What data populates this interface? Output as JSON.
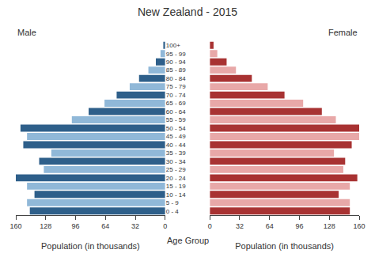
{
  "chart_data": {
    "type": "bar",
    "orientation": "horizontal",
    "title": "New Zealand - 2015",
    "categories": [
      "0 - 4",
      "5 - 9",
      "10 - 14",
      "15 - 19",
      "20 - 24",
      "25 - 29",
      "30 - 34",
      "35 - 39",
      "40 - 44",
      "45 - 49",
      "50 - 54",
      "55 - 59",
      "60 - 64",
      "65 - 69",
      "70 - 74",
      "75 - 79",
      "80 - 84",
      "85 - 89",
      "90 - 94",
      "95 - 99",
      "100+"
    ],
    "series": [
      {
        "name": "Male",
        "colors": [
          "#2e5f8a",
          "#90b8d8",
          "#2e5f8a",
          "#90b8d8",
          "#2e5f8a",
          "#90b8d8",
          "#2e5f8a",
          "#90b8d8",
          "#2e5f8a",
          "#90b8d8",
          "#2e5f8a",
          "#90b8d8",
          "#2e5f8a",
          "#90b8d8",
          "#2e5f8a",
          "#90b8d8",
          "#2e5f8a",
          "#90b8d8",
          "#2e5f8a",
          "#90b8d8",
          "#2e5f8a"
        ],
        "values": [
          145,
          148,
          140,
          148,
          160,
          130,
          135,
          122,
          152,
          148,
          155,
          100,
          82,
          65,
          52,
          38,
          28,
          18,
          10,
          5,
          2
        ]
      },
      {
        "name": "Female",
        "colors": [
          "#a83232",
          "#e8a8a8",
          "#a83232",
          "#e8a8a8",
          "#a83232",
          "#e8a8a8",
          "#a83232",
          "#e8a8a8",
          "#a83232",
          "#e8a8a8",
          "#a83232",
          "#e8a8a8",
          "#a83232",
          "#e8a8a8",
          "#a83232",
          "#e8a8a8",
          "#a83232",
          "#e8a8a8",
          "#a83232",
          "#e8a8a8",
          "#a83232"
        ],
        "values": [
          150,
          150,
          138,
          150,
          158,
          143,
          145,
          133,
          152,
          160,
          160,
          135,
          120,
          100,
          80,
          62,
          45,
          28,
          18,
          8,
          4
        ]
      }
    ],
    "xlabel": "Population (in thousands)",
    "ylabel": "Age Group",
    "xlim": [
      0,
      160
    ],
    "xticks": [
      0,
      32,
      64,
      96,
      128,
      160
    ],
    "grid": false
  }
}
